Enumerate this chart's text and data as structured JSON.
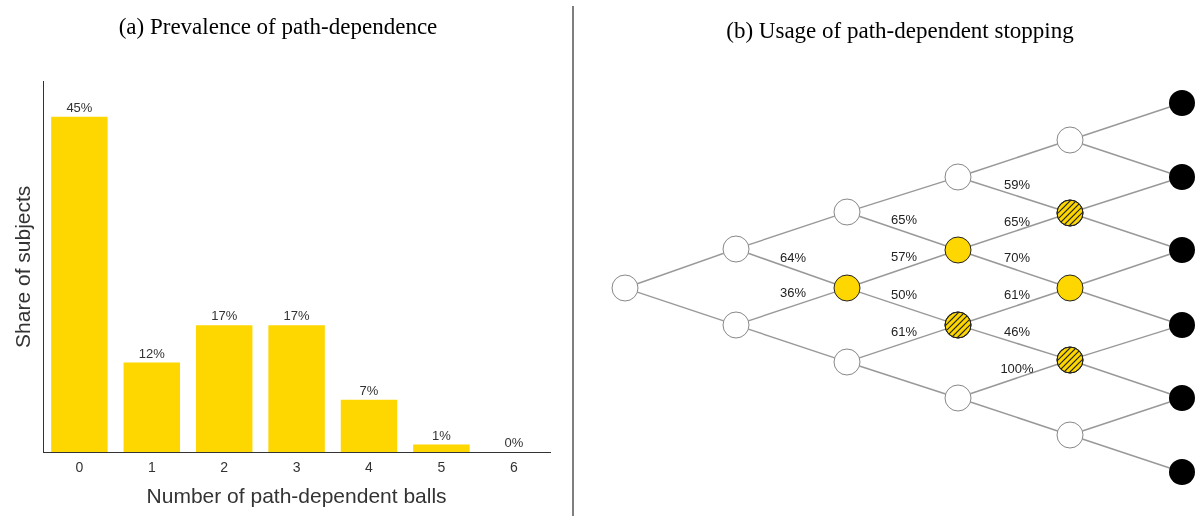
{
  "chart_data": [
    {
      "type": "bar",
      "title": "(a) Prevalence of path-dependence",
      "xlabel": "Number of path-dependent balls",
      "ylabel": "Share of subjects",
      "categories": [
        "0",
        "1",
        "2",
        "3",
        "4",
        "5",
        "6"
      ],
      "values": [
        45,
        12,
        17,
        17,
        7,
        1,
        0
      ],
      "color": "#fed700",
      "value_labels": [
        "45%",
        "12%",
        "17%",
        "17%",
        "7%",
        "1%",
        "0%"
      ],
      "grid": false,
      "tick_labels": "x",
      "legend": false
    },
    {
      "type": "other",
      "title": "(b) Usage of path-dependent stopping",
      "annotations": [
        "64%",
        "36%",
        "65%",
        "57%",
        "50%",
        "61%",
        "59%",
        "65%",
        "70%",
        "61%",
        "46%",
        "100%"
      ]
    }
  ]
}
